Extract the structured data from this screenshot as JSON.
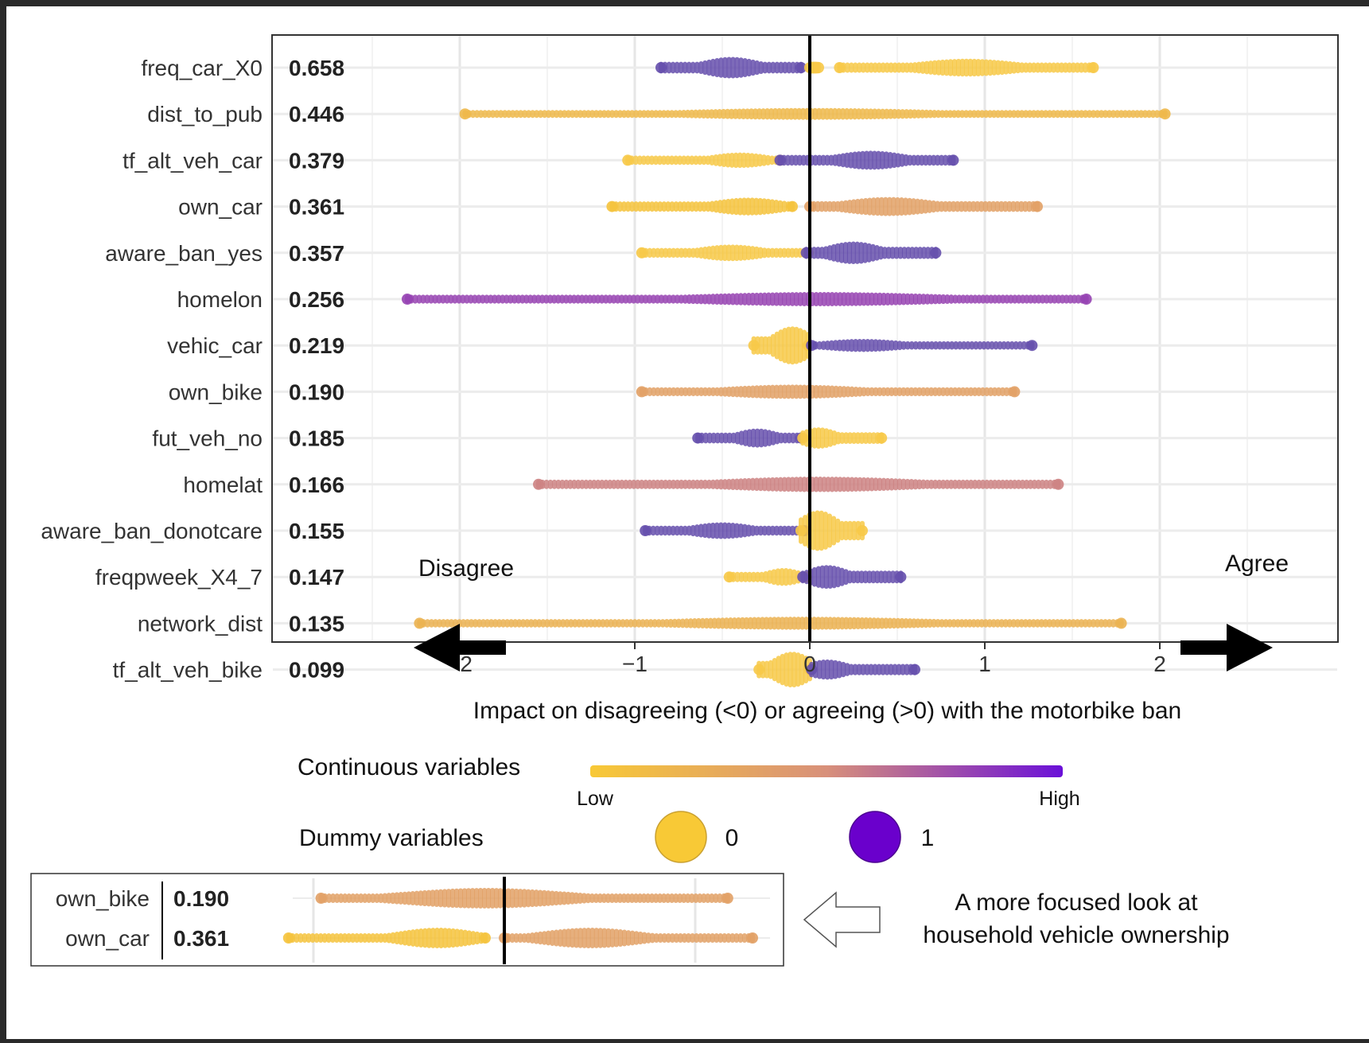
{
  "chart_data": {
    "type": "scatter",
    "subtype": "beeswarm",
    "xlabel": "Impact on disagreeing (<0) or agreeing (>0) with the motorbike ban",
    "xlim": [
      -2.5,
      2.8
    ],
    "xticks": [
      -2,
      -1,
      0,
      1,
      2
    ],
    "xtick_labels": [
      "−2",
      "−1",
      "0",
      "1",
      "2"
    ],
    "grid": true,
    "direction_labels": {
      "left": "Disagree",
      "right": "Agree"
    },
    "features": [
      {
        "name": "freq_car_X0",
        "importance": "0.658",
        "kind": "dummy",
        "segments": [
          {
            "from": -0.85,
            "to": -0.05,
            "value": 1,
            "peak": -0.45,
            "width": 0.9
          },
          {
            "from": 0.0,
            "to": 0.05,
            "value": 0,
            "peak": 0.02,
            "width": 0.5
          },
          {
            "from": 0.17,
            "to": 1.62,
            "value": 0,
            "peak": 0.9,
            "width": 0.75
          }
        ]
      },
      {
        "name": "dist_to_pub",
        "importance": "0.446",
        "kind": "continuous",
        "segments": [
          {
            "from": -1.97,
            "to": 2.03,
            "value": 0.15,
            "peak": 0.0,
            "width": 0.5
          }
        ]
      },
      {
        "name": "tf_alt_veh_car",
        "importance": "0.379",
        "kind": "dummy",
        "segments": [
          {
            "from": -1.04,
            "to": -0.17,
            "value": 0,
            "peak": -0.4,
            "width": 0.65
          },
          {
            "from": -0.17,
            "to": 0.82,
            "value": 1,
            "peak": 0.35,
            "width": 0.8
          }
        ]
      },
      {
        "name": "own_car",
        "importance": "0.361",
        "kind": "continuous",
        "segments": [
          {
            "from": -1.13,
            "to": -0.1,
            "value": 0.05,
            "peak": -0.35,
            "width": 0.75
          },
          {
            "from": 0.0,
            "to": 1.3,
            "value": 0.35,
            "peak": 0.45,
            "width": 0.8
          }
        ]
      },
      {
        "name": "aware_ban_yes",
        "importance": "0.357",
        "kind": "dummy",
        "segments": [
          {
            "from": -0.96,
            "to": -0.01,
            "value": 0,
            "peak": -0.45,
            "width": 0.7
          },
          {
            "from": -0.02,
            "to": 0.72,
            "value": 1,
            "peak": 0.25,
            "width": 0.95
          }
        ]
      },
      {
        "name": "homelon",
        "importance": "0.256",
        "kind": "continuous",
        "segments": [
          {
            "from": -2.3,
            "to": 1.58,
            "value": 0.8,
            "peak": 0.05,
            "width": 0.6
          }
        ]
      },
      {
        "name": "vehic_car",
        "importance": "0.219",
        "kind": "dummy",
        "segments": [
          {
            "from": -0.32,
            "to": -0.01,
            "value": 0,
            "peak": -0.1,
            "width": 1.6
          },
          {
            "from": 0.01,
            "to": 1.27,
            "value": 1,
            "peak": 0.3,
            "width": 0.55
          }
        ]
      },
      {
        "name": "own_bike",
        "importance": "0.190",
        "kind": "continuous",
        "segments": [
          {
            "from": -0.96,
            "to": 1.17,
            "value": 0.35,
            "peak": -0.1,
            "width": 0.6
          }
        ]
      },
      {
        "name": "fut_veh_no",
        "importance": "0.185",
        "kind": "dummy",
        "segments": [
          {
            "from": -0.64,
            "to": -0.05,
            "value": 1,
            "peak": -0.3,
            "width": 0.8
          },
          {
            "from": -0.04,
            "to": 0.41,
            "value": 0,
            "peak": 0.05,
            "width": 0.9
          }
        ]
      },
      {
        "name": "homelat",
        "importance": "0.166",
        "kind": "continuous",
        "segments": [
          {
            "from": -1.55,
            "to": 1.42,
            "value": 0.55,
            "peak": 0.05,
            "width": 0.65
          }
        ]
      },
      {
        "name": "aware_ban_donotcare",
        "importance": "0.155",
        "kind": "dummy",
        "segments": [
          {
            "from": -0.94,
            "to": -0.03,
            "value": 1,
            "peak": -0.5,
            "width": 0.7
          },
          {
            "from": -0.05,
            "to": 0.3,
            "value": 0,
            "peak": 0.05,
            "width": 1.7
          }
        ]
      },
      {
        "name": "freqpweek_X4_7",
        "importance": "0.147",
        "kind": "dummy",
        "segments": [
          {
            "from": -0.46,
            "to": -0.02,
            "value": 0,
            "peak": -0.15,
            "width": 0.75
          },
          {
            "from": -0.04,
            "to": 0.52,
            "value": 1,
            "peak": 0.1,
            "width": 1.0
          }
        ]
      },
      {
        "name": "network_dist",
        "importance": "0.135",
        "kind": "continuous",
        "segments": [
          {
            "from": -2.23,
            "to": 1.78,
            "value": 0.2,
            "peak": -0.05,
            "width": 0.55
          }
        ]
      },
      {
        "name": "tf_alt_veh_bike",
        "importance": "0.099",
        "kind": "dummy",
        "segments": [
          {
            "from": -0.29,
            "to": 0.0,
            "value": 0,
            "peak": -0.1,
            "width": 1.5
          },
          {
            "from": 0.01,
            "to": 0.6,
            "value": 1,
            "peak": 0.1,
            "width": 0.85
          }
        ]
      }
    ]
  },
  "legend": {
    "continuous_label": "Continuous variables",
    "low_label": "Low",
    "high_label": "High",
    "dummy_label": "Dummy variables",
    "dummy_zero": "0",
    "dummy_one": "1",
    "low_color": "#f8c936",
    "mid_color": "#d8907a",
    "high_color": "#6a10d8",
    "dummy_zero_color": "#f8c936",
    "dummy_one_color": "#6a00cc"
  },
  "inset": {
    "caption_line1": "A more focused look at",
    "caption_line2": "household vehicle ownership",
    "rows": [
      {
        "name": "own_bike",
        "importance": "0.190"
      },
      {
        "name": "own_car",
        "importance": "0.361"
      }
    ]
  }
}
